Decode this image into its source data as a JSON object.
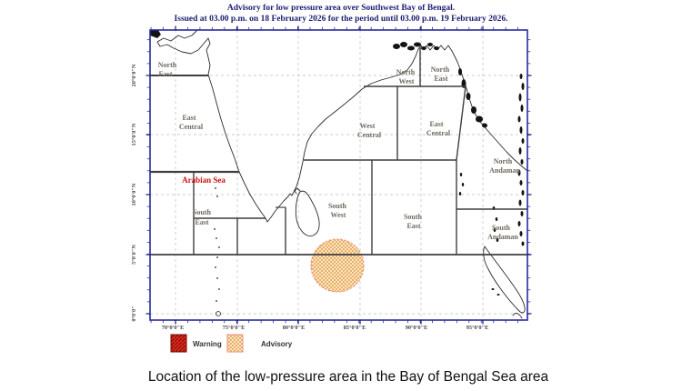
{
  "title": {
    "line1": "Advisory for low pressure area over Southwest Bay of Bengal.",
    "line2": "Issued at 03.00 p.m. on 18 February 2026 for the period until 03.00 p.m. 19 February 2026."
  },
  "caption": "Location of the low-pressure area in the Bay of Bengal Sea area",
  "map": {
    "x_axis_labels": [
      "70°0'0\"E",
      "75°0'0\"E",
      "80°0'0\"E",
      "85°0'0\"E",
      "90°0'0\"E",
      "95°0'0\"E"
    ],
    "y_axis_labels": [
      "20°0'0\"N",
      "15°0'0\"N",
      "10°0'0\"N",
      "5°0'0\"N",
      "0°0'0\""
    ],
    "zones": {
      "arabian_north_east": {
        "l1": "North",
        "l2": "East"
      },
      "arabian_east_central": {
        "l1": "East",
        "l2": "Central"
      },
      "arabian_sea": "Arabian Sea",
      "arabian_south_east": {
        "l1": "South",
        "l2": "East"
      },
      "bay_north_west": {
        "l1": "North",
        "l2": "West"
      },
      "bay_north_east": {
        "l1": "North",
        "l2": "East"
      },
      "bay_west_central": {
        "l1": "West",
        "l2": "Central"
      },
      "bay_east_central": {
        "l1": "East",
        "l2": "Central"
      },
      "bay_south_west": {
        "l1": "South",
        "l2": "West"
      },
      "bay_south_east": {
        "l1": "South",
        "l2": "East"
      },
      "north_andaman": {
        "l1": "North",
        "l2": "Andaman"
      },
      "south_andaman": {
        "l1": "South",
        "l2": "Andaman"
      }
    }
  },
  "legend": {
    "warning_label": "Warning",
    "advisory_label": "Advisory",
    "warning_fill": "#e32a1d",
    "warning_hatch": "#8c1008",
    "warning_border": "#6b0d06",
    "advisory_fill": "#fef8ee",
    "advisory_hatch": "#e7a449",
    "advisory_border": "#ee8f7d"
  },
  "colors": {
    "title": "#1d1d72",
    "frame": "#2a2a9e",
    "zone_label": "#6e6a5f",
    "arabian_sea_label": "#cc1111",
    "boundary": "#3f3f3f"
  }
}
